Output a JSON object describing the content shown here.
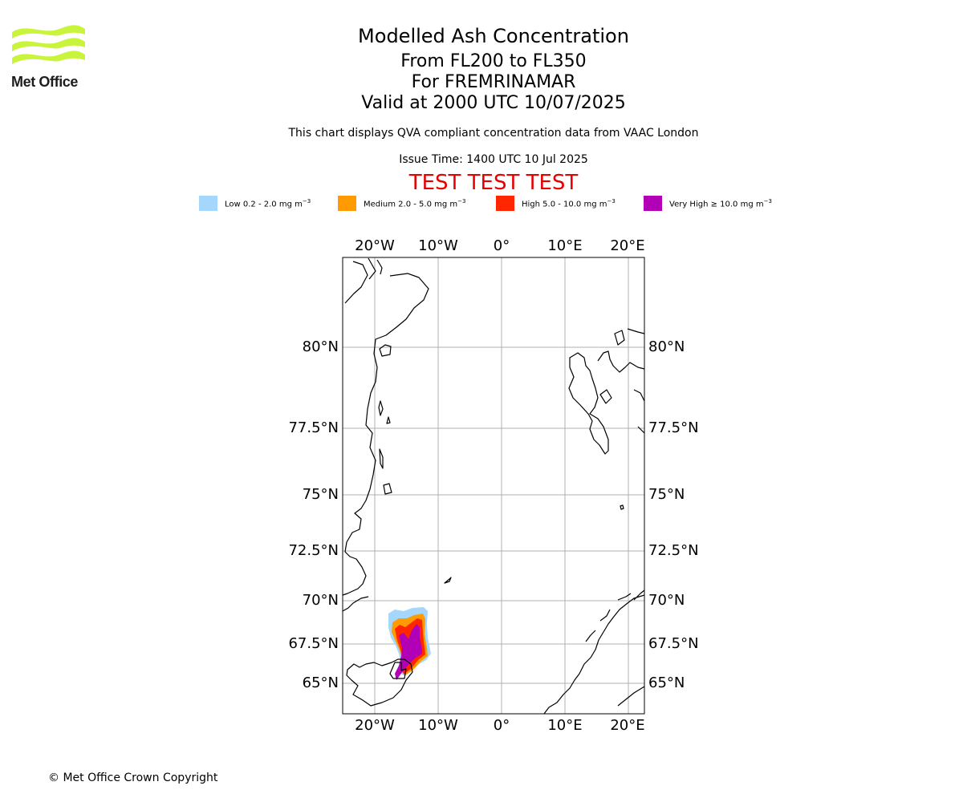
{
  "header": {
    "logo_text": "Met Office",
    "title": "Modelled Ash Concentration",
    "flight_levels": "From FL200 to FL350",
    "volcano": "For FREMRINAMAR",
    "valid_time": "Valid at 2000 UTC 10/07/2025",
    "subtitle": "This chart displays QVA compliant concentration data from VAAC London",
    "issue_time": "Issue Time: 1400 UTC 10 Jul 2025",
    "test_banner": "TEST TEST TEST"
  },
  "legend": [
    {
      "label": "Low 0.2 - 2.0 mg m",
      "unit_exp": "−3",
      "color": "#a5d6fb"
    },
    {
      "label": "Medium 2.0 - 5.0 mg m",
      "unit_exp": "−3",
      "color": "#ff9a00"
    },
    {
      "label": "High 5.0 - 10.0 mg m",
      "unit_exp": "−3",
      "color": "#ff2600"
    },
    {
      "label": "Very High  ≥  10.0 mg m",
      "unit_exp": "−3",
      "color": "#b100b5"
    }
  ],
  "map": {
    "lon_labels": [
      "20°W",
      "10°W",
      "0°",
      "10°E",
      "20°E"
    ],
    "lat_labels": [
      "80°N",
      "77.5°N",
      "75°N",
      "72.5°N",
      "70°N",
      "67.5°N",
      "65°N"
    ],
    "ash_levels": [
      "low",
      "medium",
      "high",
      "very-high"
    ]
  },
  "footer": {
    "copyright": "© Met Office Crown Copyright"
  }
}
